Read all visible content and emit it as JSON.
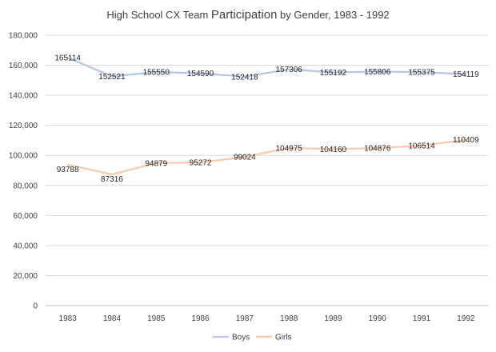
{
  "chart_data": {
    "type": "line",
    "title": {
      "part1": "High School CX Team ",
      "part2": "Participation",
      "part3": " by Gender, 1983 - 1992"
    },
    "categories": [
      "1983",
      "1984",
      "1985",
      "1986",
      "1987",
      "1988",
      "1989",
      "1990",
      "1991",
      "1992"
    ],
    "series": [
      {
        "name": "Boys",
        "color": "#b4c7e7",
        "values": [
          165114,
          152521,
          155550,
          154590,
          152418,
          157306,
          155192,
          155806,
          155375,
          154119
        ]
      },
      {
        "name": "Girls",
        "color": "#f8cbad",
        "values": [
          93788,
          87316,
          94879,
          95272,
          99024,
          104975,
          104160,
          104876,
          106514,
          110409
        ]
      }
    ],
    "ylim": [
      0,
      180000
    ],
    "yticks": [
      "0",
      "20,000",
      "40,000",
      "60,000",
      "80,000",
      "100,000",
      "120,000",
      "140,000",
      "160,000",
      "180,000"
    ],
    "grid": true,
    "legend_position": "bottom",
    "xlabel": "",
    "ylabel": ""
  }
}
